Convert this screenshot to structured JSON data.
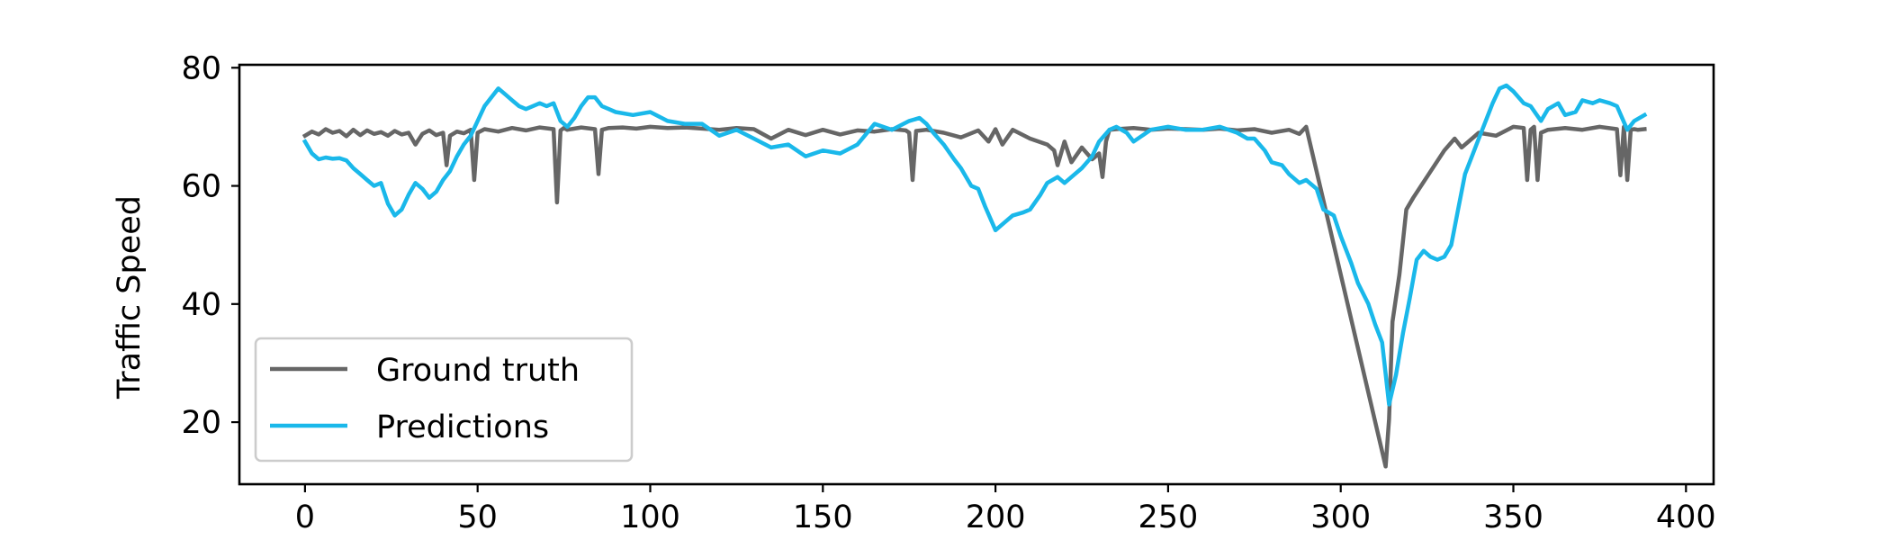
{
  "chart_data": {
    "type": "line",
    "title": "",
    "xlabel": "",
    "ylabel": "Traffic Speed",
    "xlim": [
      -19,
      408
    ],
    "ylim": [
      9.5,
      80.5
    ],
    "xticks": [
      0,
      50,
      100,
      150,
      200,
      250,
      300,
      350,
      400
    ],
    "yticks": [
      20,
      40,
      60,
      80
    ],
    "grid": false,
    "legend": {
      "placement": "lower-left"
    },
    "series": [
      {
        "name": "Ground truth",
        "color": "#666666",
        "x": [
          0,
          2,
          4,
          6,
          8,
          10,
          12,
          14,
          16,
          18,
          20,
          22,
          24,
          26,
          28,
          30,
          32,
          34,
          36,
          38,
          40,
          41,
          42,
          44,
          46,
          48,
          49,
          50,
          52,
          56,
          60,
          64,
          68,
          72,
          73,
          74,
          75,
          76,
          80,
          84,
          85,
          86,
          88,
          92,
          96,
          100,
          105,
          110,
          115,
          120,
          125,
          130,
          135,
          140,
          145,
          150,
          155,
          160,
          165,
          170,
          174,
          175,
          176,
          177,
          180,
          185,
          190,
          195,
          198,
          200,
          202,
          205,
          210,
          215,
          217,
          218,
          220,
          222,
          225,
          228,
          230,
          231,
          232,
          233,
          235,
          240,
          245,
          250,
          255,
          260,
          265,
          270,
          275,
          280,
          285,
          288,
          290,
          313,
          314,
          315,
          317,
          319,
          321,
          330,
          333,
          335,
          340,
          345,
          350,
          353,
          354,
          355,
          356,
          357,
          358,
          360,
          365,
          370,
          375,
          380,
          381,
          382,
          383,
          384,
          385,
          386,
          388
        ],
        "values": [
          68.5,
          69.2,
          68.7,
          69.6,
          69.0,
          69.3,
          68.4,
          69.5,
          68.6,
          69.4,
          68.8,
          69.1,
          68.5,
          69.3,
          68.7,
          69.0,
          67.0,
          68.8,
          69.4,
          68.6,
          69.0,
          63.5,
          68.5,
          69.2,
          68.9,
          69.5,
          61.0,
          69.0,
          69.6,
          69.2,
          69.8,
          69.4,
          69.9,
          69.6,
          57.2,
          69.4,
          69.8,
          69.5,
          69.9,
          69.6,
          62.0,
          69.5,
          69.8,
          69.9,
          69.7,
          70.0,
          69.8,
          69.9,
          69.7,
          69.5,
          69.8,
          69.6,
          68.0,
          69.5,
          68.6,
          69.5,
          68.7,
          69.4,
          69.2,
          69.6,
          69.4,
          69.0,
          61.0,
          69.3,
          69.5,
          69.0,
          68.2,
          69.4,
          67.5,
          69.6,
          67.0,
          69.5,
          68.0,
          67.0,
          66.0,
          63.5,
          67.5,
          64.0,
          66.5,
          64.5,
          65.5,
          61.5,
          67.5,
          69.5,
          69.6,
          69.8,
          69.5,
          69.7,
          69.6,
          69.5,
          69.7,
          69.4,
          69.6,
          69.0,
          69.5,
          68.8,
          70.0,
          12.5,
          20.5,
          37.0,
          45.0,
          56.0,
          58.0,
          66.0,
          68.0,
          66.5,
          69.0,
          68.5,
          70.0,
          69.8,
          61.0,
          69.5,
          70.0,
          61.0,
          69.0,
          69.5,
          69.8,
          69.5,
          70.0,
          69.6,
          61.8,
          70.0,
          61.0,
          69.5,
          69.6,
          69.5,
          69.6
        ]
      },
      {
        "name": "Predictions",
        "color": "#1ab8ea",
        "x": [
          0,
          2,
          4,
          6,
          8,
          10,
          12,
          14,
          16,
          18,
          20,
          22,
          24,
          26,
          28,
          30,
          32,
          34,
          36,
          38,
          40,
          42,
          44,
          46,
          48,
          50,
          52,
          54,
          56,
          58,
          60,
          62,
          64,
          66,
          68,
          70,
          72,
          74,
          76,
          78,
          80,
          82,
          84,
          86,
          88,
          90,
          95,
          100,
          105,
          110,
          115,
          120,
          125,
          130,
          135,
          140,
          145,
          150,
          155,
          160,
          165,
          170,
          175,
          178,
          180,
          182,
          185,
          188,
          190,
          193,
          195,
          197,
          200,
          203,
          205,
          208,
          210,
          213,
          215,
          218,
          220,
          222,
          225,
          228,
          230,
          233,
          235,
          238,
          240,
          245,
          250,
          255,
          260,
          265,
          270,
          273,
          275,
          278,
          280,
          283,
          285,
          288,
          290,
          293,
          295,
          298,
          300,
          303,
          305,
          308,
          310,
          312,
          314,
          316,
          318,
          320,
          322,
          324,
          326,
          328,
          330,
          332,
          334,
          336,
          338,
          340,
          342,
          344,
          346,
          348,
          350,
          353,
          355,
          358,
          360,
          363,
          365,
          368,
          370,
          373,
          375,
          378,
          380,
          383,
          385,
          388
        ],
        "values": [
          67.5,
          65.5,
          64.5,
          64.8,
          64.6,
          64.7,
          64.3,
          63.0,
          62.0,
          61.0,
          60.0,
          60.5,
          57.0,
          55.0,
          56.0,
          58.5,
          60.5,
          59.5,
          58.0,
          59.0,
          61.0,
          62.5,
          65.0,
          67.0,
          68.5,
          71.0,
          73.5,
          75.0,
          76.5,
          75.5,
          74.5,
          73.5,
          73.0,
          73.5,
          74.0,
          73.5,
          74.0,
          71.0,
          70.0,
          71.5,
          73.5,
          75.0,
          75.0,
          73.5,
          73.0,
          72.5,
          72.0,
          72.5,
          71.0,
          70.5,
          70.5,
          68.5,
          69.5,
          68.0,
          66.5,
          67.0,
          65.0,
          66.0,
          65.5,
          67.0,
          70.5,
          69.5,
          71.0,
          71.5,
          70.5,
          69.0,
          67.0,
          64.5,
          63.0,
          60.0,
          59.5,
          56.5,
          52.5,
          54.0,
          55.0,
          55.5,
          56.0,
          58.5,
          60.5,
          61.5,
          60.5,
          61.5,
          63.0,
          65.0,
          67.5,
          69.5,
          70.0,
          69.0,
          67.5,
          69.5,
          70.0,
          69.5,
          69.5,
          70.0,
          69.0,
          68.0,
          68.0,
          66.0,
          64.0,
          63.5,
          62.0,
          60.5,
          61.0,
          59.5,
          56.0,
          55.0,
          51.5,
          47.0,
          43.5,
          40.0,
          36.5,
          33.5,
          23.0,
          28.0,
          35.0,
          41.0,
          47.5,
          49.0,
          48.0,
          47.5,
          48.0,
          50.0,
          56.0,
          62.0,
          65.0,
          68.0,
          71.0,
          74.0,
          76.5,
          77.0,
          76.0,
          74.0,
          73.5,
          71.0,
          73.0,
          74.0,
          72.0,
          72.5,
          74.5,
          74.0,
          74.5,
          74.0,
          73.5,
          69.5,
          71.0,
          72.0
        ]
      }
    ]
  }
}
